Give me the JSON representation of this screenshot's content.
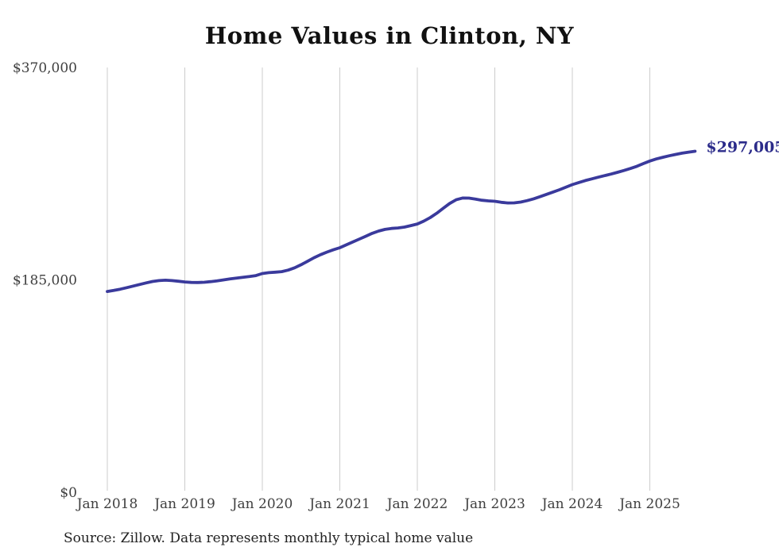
{
  "page": {
    "title": "Home Values in Clinton, NY",
    "source_note": "Source: Zillow. Data represents monthly typical home value"
  },
  "chart_data": {
    "type": "line",
    "title": "Home Values in Clinton, NY",
    "series_name": "Monthly typical home value",
    "end_label": "$297,005",
    "end_value": 297005,
    "ylim": [
      0,
      370000
    ],
    "grid": "vertical-only",
    "legend": "none",
    "colors": {
      "line": "#3a3a9c",
      "end_label": "#2b2b8a",
      "gridline": "#cccccc",
      "tick_text": "#3f3f3f",
      "title_text": "#111111",
      "source_text": "#222222",
      "background": "#ffffff"
    },
    "y_ticks": [
      {
        "label": "$0",
        "value": 0
      },
      {
        "label": "$185,000",
        "value": 185000
      },
      {
        "label": "$370,000",
        "value": 370000
      }
    ],
    "x_tick_labels": [
      "Jan 2018",
      "Jan 2019",
      "Jan 2020",
      "Jan 2021",
      "Jan 2022",
      "Jan 2023",
      "Jan 2024",
      "Jan 2025"
    ],
    "months": [
      "2018-01",
      "2018-02",
      "2018-03",
      "2018-04",
      "2018-05",
      "2018-06",
      "2018-07",
      "2018-08",
      "2018-09",
      "2018-10",
      "2018-11",
      "2018-12",
      "2019-01",
      "2019-02",
      "2019-03",
      "2019-04",
      "2019-05",
      "2019-06",
      "2019-07",
      "2019-08",
      "2019-09",
      "2019-10",
      "2019-11",
      "2019-12",
      "2020-01",
      "2020-02",
      "2020-03",
      "2020-04",
      "2020-05",
      "2020-06",
      "2020-07",
      "2020-08",
      "2020-09",
      "2020-10",
      "2020-11",
      "2020-12",
      "2021-01",
      "2021-02",
      "2021-03",
      "2021-04",
      "2021-05",
      "2021-06",
      "2021-07",
      "2021-08",
      "2021-09",
      "2021-10",
      "2021-11",
      "2021-12",
      "2022-01",
      "2022-02",
      "2022-03",
      "2022-04",
      "2022-05",
      "2022-06",
      "2022-07",
      "2022-08",
      "2022-09",
      "2022-10",
      "2022-11",
      "2022-12",
      "2023-01",
      "2023-02",
      "2023-03",
      "2023-04",
      "2023-05",
      "2023-06",
      "2023-07",
      "2023-08",
      "2023-09",
      "2023-10",
      "2023-11",
      "2023-12",
      "2024-01",
      "2024-02",
      "2024-03",
      "2024-04",
      "2024-05",
      "2024-06",
      "2024-07",
      "2024-08",
      "2024-09",
      "2024-10",
      "2024-11",
      "2024-12",
      "2025-01",
      "2025-02",
      "2025-03",
      "2025-04",
      "2025-05",
      "2025-06",
      "2025-07",
      "2025-08"
    ],
    "values": [
      174900,
      175800,
      176900,
      178200,
      179600,
      181000,
      182400,
      183600,
      184400,
      184700,
      184400,
      183800,
      183200,
      182800,
      182700,
      182900,
      183500,
      184200,
      185000,
      185800,
      186500,
      187200,
      187900,
      188700,
      190500,
      191300,
      191700,
      192200,
      193500,
      195500,
      198200,
      201200,
      204300,
      206900,
      209200,
      211200,
      213000,
      215500,
      218000,
      220500,
      223000,
      225500,
      227500,
      229000,
      229800,
      230200,
      231000,
      232300,
      233700,
      236200,
      239300,
      243000,
      247300,
      251500,
      254800,
      256300,
      256200,
      255400,
      254400,
      253800,
      253500,
      252600,
      252000,
      252100,
      252800,
      254000,
      255600,
      257500,
      259500,
      261500,
      263500,
      265800,
      268000,
      269800,
      271500,
      273000,
      274400,
      275800,
      277200,
      278700,
      280300,
      282000,
      284000,
      286300,
      288500,
      290300,
      291800,
      293100,
      294300,
      295400,
      296300,
      297005
    ]
  }
}
